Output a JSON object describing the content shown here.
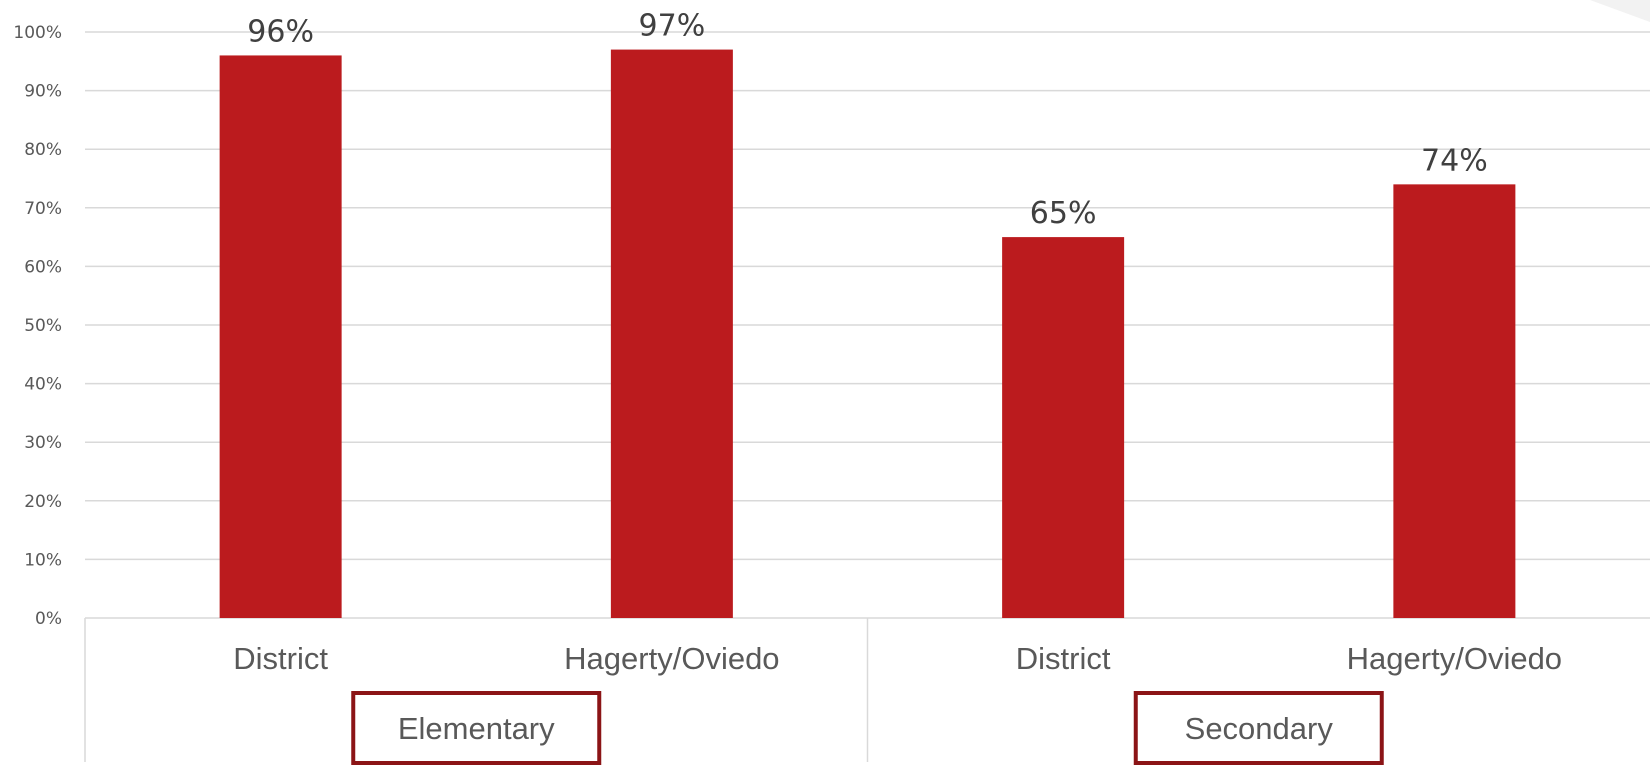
{
  "chart_data": {
    "type": "bar",
    "categories": [
      "District",
      "Hagerty/Oviedo",
      "District",
      "Hagerty/Oviedo"
    ],
    "groups": [
      {
        "label": "Elementary",
        "categories": [
          "District",
          "Hagerty/Oviedo"
        ]
      },
      {
        "label": "Secondary",
        "categories": [
          "District",
          "Hagerty/Oviedo"
        ]
      }
    ],
    "values": [
      96,
      97,
      65,
      74
    ],
    "data_labels": [
      "96%",
      "97%",
      "65%",
      "74%"
    ],
    "ylim": [
      0,
      100
    ],
    "yticks": [
      0,
      10,
      20,
      30,
      40,
      50,
      60,
      70,
      80,
      90,
      100
    ],
    "ytick_labels": [
      "0%",
      "10%",
      "20%",
      "30%",
      "40%",
      "50%",
      "60%",
      "70%",
      "80%",
      "90%",
      "100%"
    ],
    "grid": true,
    "legend": "none",
    "bar_color": "#bb1b1e",
    "group_box_color": "#8b1416"
  }
}
